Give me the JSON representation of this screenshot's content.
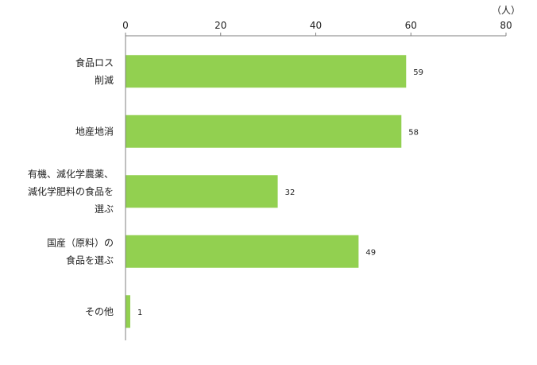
{
  "chart_data": {
    "type": "bar",
    "orientation": "horizontal",
    "title": "",
    "unit": "（人）",
    "xlim": [
      0,
      80
    ],
    "xticks": [
      0,
      20,
      40,
      60,
      80
    ],
    "categories": [
      [
        "食品ロス",
        "削減"
      ],
      [
        "地産地消"
      ],
      [
        "有機、減化学農薬、",
        "減化学肥料の食品を",
        "選ぶ"
      ],
      [
        "国産（原料）の",
        "食品を選ぶ"
      ],
      [
        "その他"
      ]
    ],
    "values": [
      59,
      58,
      32,
      49,
      1
    ],
    "bar_color": "#92d050",
    "axis_position": "top",
    "grid": false,
    "legend": "none"
  }
}
